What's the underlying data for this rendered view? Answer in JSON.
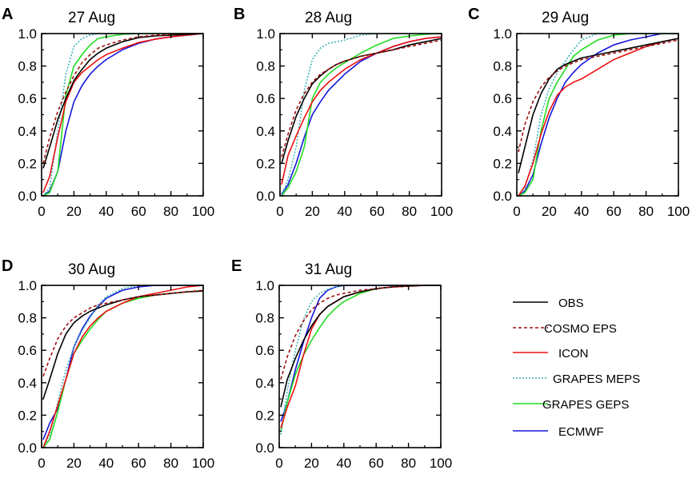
{
  "colors": {
    "OBS": "#000000",
    "COSMO EPS": "#a01010",
    "ICON": "#ee1010",
    "GRAPES MEPS": "#3cb4b4",
    "GRAPES GEPS": "#22dd22",
    "ECMWF": "#1515dd"
  },
  "legend": [
    {
      "name": "OBS",
      "style": "solid"
    },
    {
      "name": "COSMO EPS",
      "style": "dashed"
    },
    {
      "name": "ICON",
      "style": "solid"
    },
    {
      "name": "GRAPES MEPS",
      "style": "dotted"
    },
    {
      "name": "GRAPES GEPS",
      "style": "solid"
    },
    {
      "name": "ECMWF",
      "style": "solid"
    }
  ],
  "chart_data": [
    {
      "type": "line",
      "panel_label": "A",
      "title": "27 Aug",
      "xlim": [
        0,
        100
      ],
      "ylim": [
        0,
        1.0
      ],
      "xticks": [
        "0",
        "20",
        "40",
        "60",
        "80",
        "100"
      ],
      "yticks": [
        "0.0",
        "0.2",
        "0.4",
        "0.6",
        "0.8",
        "1.0"
      ],
      "x": [
        1,
        5,
        10,
        15,
        20,
        25,
        30,
        35,
        40,
        50,
        60,
        70,
        80,
        90,
        100
      ],
      "series": [
        {
          "name": "OBS",
          "values": [
            0.17,
            0.3,
            0.47,
            0.6,
            0.71,
            0.78,
            0.84,
            0.88,
            0.91,
            0.95,
            0.975,
            0.985,
            0.99,
            0.995,
            1.0
          ]
        },
        {
          "name": "COSMO EPS",
          "values": [
            0.2,
            0.36,
            0.52,
            0.64,
            0.74,
            0.82,
            0.87,
            0.91,
            0.93,
            0.96,
            0.98,
            0.99,
            0.995,
            1.0,
            1.0
          ]
        },
        {
          "name": "ICON",
          "values": [
            0.02,
            0.12,
            0.36,
            0.58,
            0.7,
            0.76,
            0.8,
            0.84,
            0.87,
            0.91,
            0.945,
            0.965,
            0.98,
            0.99,
            1.0
          ]
        },
        {
          "name": "GRAPES MEPS",
          "values": [
            0.0,
            0.05,
            0.4,
            0.75,
            0.92,
            0.97,
            0.99,
            1.0,
            1.0,
            1.0,
            1.0,
            1.0,
            1.0,
            1.0,
            1.0
          ]
        },
        {
          "name": "GRAPES GEPS",
          "values": [
            0.0,
            0.02,
            0.15,
            0.62,
            0.8,
            0.87,
            0.93,
            0.97,
            0.98,
            0.995,
            1.0,
            1.0,
            1.0,
            1.0,
            1.0
          ]
        },
        {
          "name": "ECMWF",
          "values": [
            0.0,
            0.03,
            0.15,
            0.4,
            0.58,
            0.68,
            0.75,
            0.8,
            0.84,
            0.9,
            0.94,
            0.965,
            0.98,
            0.99,
            1.0
          ]
        }
      ]
    },
    {
      "type": "line",
      "panel_label": "B",
      "title": "28 Aug",
      "xlim": [
        0,
        100
      ],
      "ylim": [
        0,
        1.0
      ],
      "xticks": [
        "0",
        "20",
        "40",
        "60",
        "80",
        "100"
      ],
      "yticks": [
        "0.0",
        "0.2",
        "0.4",
        "0.6",
        "0.8",
        "1.0"
      ],
      "x": [
        1,
        5,
        10,
        15,
        20,
        25,
        30,
        35,
        40,
        50,
        60,
        70,
        80,
        90,
        100
      ],
      "series": [
        {
          "name": "OBS",
          "values": [
            0.2,
            0.34,
            0.49,
            0.6,
            0.69,
            0.74,
            0.78,
            0.81,
            0.83,
            0.86,
            0.88,
            0.9,
            0.93,
            0.95,
            0.97
          ]
        },
        {
          "name": "COSMO EPS",
          "values": [
            0.24,
            0.38,
            0.53,
            0.63,
            0.7,
            0.75,
            0.78,
            0.81,
            0.83,
            0.86,
            0.88,
            0.9,
            0.92,
            0.94,
            0.96
          ]
        },
        {
          "name": "ICON",
          "values": [
            0.07,
            0.25,
            0.37,
            0.48,
            0.58,
            0.65,
            0.7,
            0.74,
            0.78,
            0.84,
            0.88,
            0.92,
            0.95,
            0.97,
            0.98
          ]
        },
        {
          "name": "GRAPES MEPS",
          "values": [
            0.0,
            0.1,
            0.3,
            0.65,
            0.84,
            0.91,
            0.94,
            0.95,
            0.96,
            0.99,
            1.0,
            1.0,
            1.0,
            1.0,
            1.0
          ]
        },
        {
          "name": "GRAPES GEPS",
          "values": [
            0.0,
            0.05,
            0.15,
            0.3,
            0.6,
            0.7,
            0.75,
            0.79,
            0.82,
            0.88,
            0.93,
            0.97,
            0.985,
            0.995,
            1.0
          ]
        },
        {
          "name": "ECMWF",
          "values": [
            0.01,
            0.07,
            0.2,
            0.36,
            0.5,
            0.58,
            0.65,
            0.7,
            0.75,
            0.83,
            0.88,
            0.92,
            0.95,
            0.97,
            0.98
          ]
        }
      ]
    },
    {
      "type": "line",
      "panel_label": "C",
      "title": "29 Aug",
      "xlim": [
        0,
        100
      ],
      "ylim": [
        0,
        1.0
      ],
      "xticks": [
        "0",
        "20",
        "40",
        "60",
        "80",
        "100"
      ],
      "yticks": [
        "0.0",
        "0.2",
        "0.4",
        "0.6",
        "0.8",
        "1.0"
      ],
      "x": [
        1,
        5,
        10,
        15,
        20,
        25,
        30,
        35,
        40,
        50,
        60,
        70,
        80,
        90,
        100
      ],
      "series": [
        {
          "name": "OBS",
          "values": [
            0.14,
            0.3,
            0.5,
            0.63,
            0.72,
            0.78,
            0.81,
            0.83,
            0.85,
            0.87,
            0.89,
            0.91,
            0.93,
            0.95,
            0.97
          ]
        },
        {
          "name": "COSMO EPS",
          "values": [
            0.27,
            0.44,
            0.58,
            0.67,
            0.73,
            0.77,
            0.8,
            0.82,
            0.84,
            0.86,
            0.88,
            0.9,
            0.92,
            0.94,
            0.96
          ]
        },
        {
          "name": "ICON",
          "values": [
            0.0,
            0.06,
            0.2,
            0.38,
            0.52,
            0.62,
            0.67,
            0.7,
            0.72,
            0.78,
            0.84,
            0.88,
            0.92,
            0.95,
            0.97
          ]
        },
        {
          "name": "GRAPES MEPS",
          "values": [
            0.0,
            0.05,
            0.22,
            0.5,
            0.66,
            0.76,
            0.83,
            0.9,
            0.96,
            1.0,
            1.0,
            1.0,
            1.0,
            1.0,
            1.0
          ]
        },
        {
          "name": "GRAPES GEPS",
          "values": [
            0.0,
            0.02,
            0.1,
            0.4,
            0.6,
            0.7,
            0.78,
            0.86,
            0.9,
            0.96,
            0.99,
            1.0,
            1.0,
            1.0,
            1.0
          ]
        },
        {
          "name": "ECMWF",
          "values": [
            0.0,
            0.03,
            0.13,
            0.32,
            0.48,
            0.6,
            0.7,
            0.76,
            0.81,
            0.88,
            0.93,
            0.96,
            0.98,
            1.0,
            1.0
          ]
        }
      ]
    },
    {
      "type": "line",
      "panel_label": "D",
      "title": "30 Aug",
      "xlim": [
        0,
        100
      ],
      "ylim": [
        0,
        1.0
      ],
      "xticks": [
        "0",
        "20",
        "40",
        "60",
        "80",
        "100"
      ],
      "yticks": [
        "0.0",
        "0.2",
        "0.4",
        "0.6",
        "0.8",
        "1.0"
      ],
      "x": [
        1,
        5,
        10,
        15,
        20,
        25,
        30,
        35,
        40,
        50,
        60,
        70,
        80,
        90,
        100
      ],
      "series": [
        {
          "name": "OBS",
          "values": [
            0.3,
            0.42,
            0.58,
            0.7,
            0.77,
            0.81,
            0.84,
            0.86,
            0.88,
            0.91,
            0.93,
            0.94,
            0.95,
            0.96,
            0.965
          ]
        },
        {
          "name": "COSMO EPS",
          "values": [
            0.44,
            0.55,
            0.67,
            0.75,
            0.8,
            0.83,
            0.86,
            0.88,
            0.89,
            0.91,
            0.93,
            0.94,
            0.95,
            0.96,
            0.97
          ]
        },
        {
          "name": "ICON",
          "values": [
            0.0,
            0.1,
            0.26,
            0.42,
            0.58,
            0.68,
            0.75,
            0.8,
            0.84,
            0.89,
            0.93,
            0.95,
            0.97,
            0.99,
            1.0
          ]
        },
        {
          "name": "GRAPES MEPS",
          "values": [
            0.0,
            0.08,
            0.28,
            0.48,
            0.62,
            0.72,
            0.8,
            0.88,
            0.93,
            0.98,
            1.0,
            1.0,
            1.0,
            1.0,
            1.0
          ]
        },
        {
          "name": "GRAPES GEPS",
          "values": [
            0.0,
            0.05,
            0.22,
            0.42,
            0.58,
            0.66,
            0.73,
            0.79,
            0.84,
            0.89,
            0.92,
            0.94,
            0.95,
            0.96,
            0.965
          ]
        },
        {
          "name": "ECMWF",
          "values": [
            0.05,
            0.15,
            0.24,
            0.42,
            0.62,
            0.73,
            0.81,
            0.87,
            0.92,
            0.97,
            0.99,
            1.0,
            1.0,
            1.0,
            1.0
          ]
        }
      ]
    },
    {
      "type": "line",
      "panel_label": "E",
      "title": "31 Aug",
      "xlim": [
        0,
        100
      ],
      "ylim": [
        0,
        1.0
      ],
      "xticks": [
        "0",
        "20",
        "40",
        "60",
        "80",
        "100"
      ],
      "yticks": [
        "0.0",
        "0.2",
        "0.4",
        "0.6",
        "0.8",
        "1.0"
      ],
      "x": [
        1,
        5,
        10,
        15,
        20,
        25,
        30,
        35,
        40,
        50,
        60,
        70,
        80,
        90,
        100
      ],
      "series": [
        {
          "name": "OBS",
          "values": [
            0.25,
            0.42,
            0.55,
            0.66,
            0.75,
            0.82,
            0.87,
            0.9,
            0.93,
            0.96,
            0.98,
            0.99,
            0.995,
            1.0,
            1.0
          ]
        },
        {
          "name": "COSMO EPS",
          "values": [
            0.42,
            0.56,
            0.69,
            0.78,
            0.85,
            0.89,
            0.92,
            0.94,
            0.95,
            0.97,
            0.98,
            0.99,
            0.995,
            1.0,
            1.0
          ]
        },
        {
          "name": "ICON",
          "values": [
            0.12,
            0.25,
            0.38,
            0.57,
            0.73,
            0.82,
            0.87,
            0.9,
            0.93,
            0.96,
            0.98,
            0.99,
            0.995,
            1.0,
            1.0
          ]
        },
        {
          "name": "GRAPES MEPS",
          "values": [
            0.08,
            0.35,
            0.6,
            0.79,
            0.9,
            0.95,
            0.975,
            0.99,
            1.0,
            1.0,
            1.0,
            1.0,
            1.0,
            1.0,
            1.0
          ]
        },
        {
          "name": "GRAPES GEPS",
          "values": [
            0.1,
            0.28,
            0.45,
            0.57,
            0.66,
            0.74,
            0.81,
            0.86,
            0.9,
            0.95,
            0.98,
            0.99,
            1.0,
            1.0,
            1.0
          ]
        },
        {
          "name": "ECMWF",
          "values": [
            0.16,
            0.28,
            0.48,
            0.65,
            0.8,
            0.92,
            0.97,
            0.99,
            1.0,
            1.0,
            1.0,
            1.0,
            1.0,
            1.0,
            1.0
          ]
        }
      ]
    }
  ]
}
